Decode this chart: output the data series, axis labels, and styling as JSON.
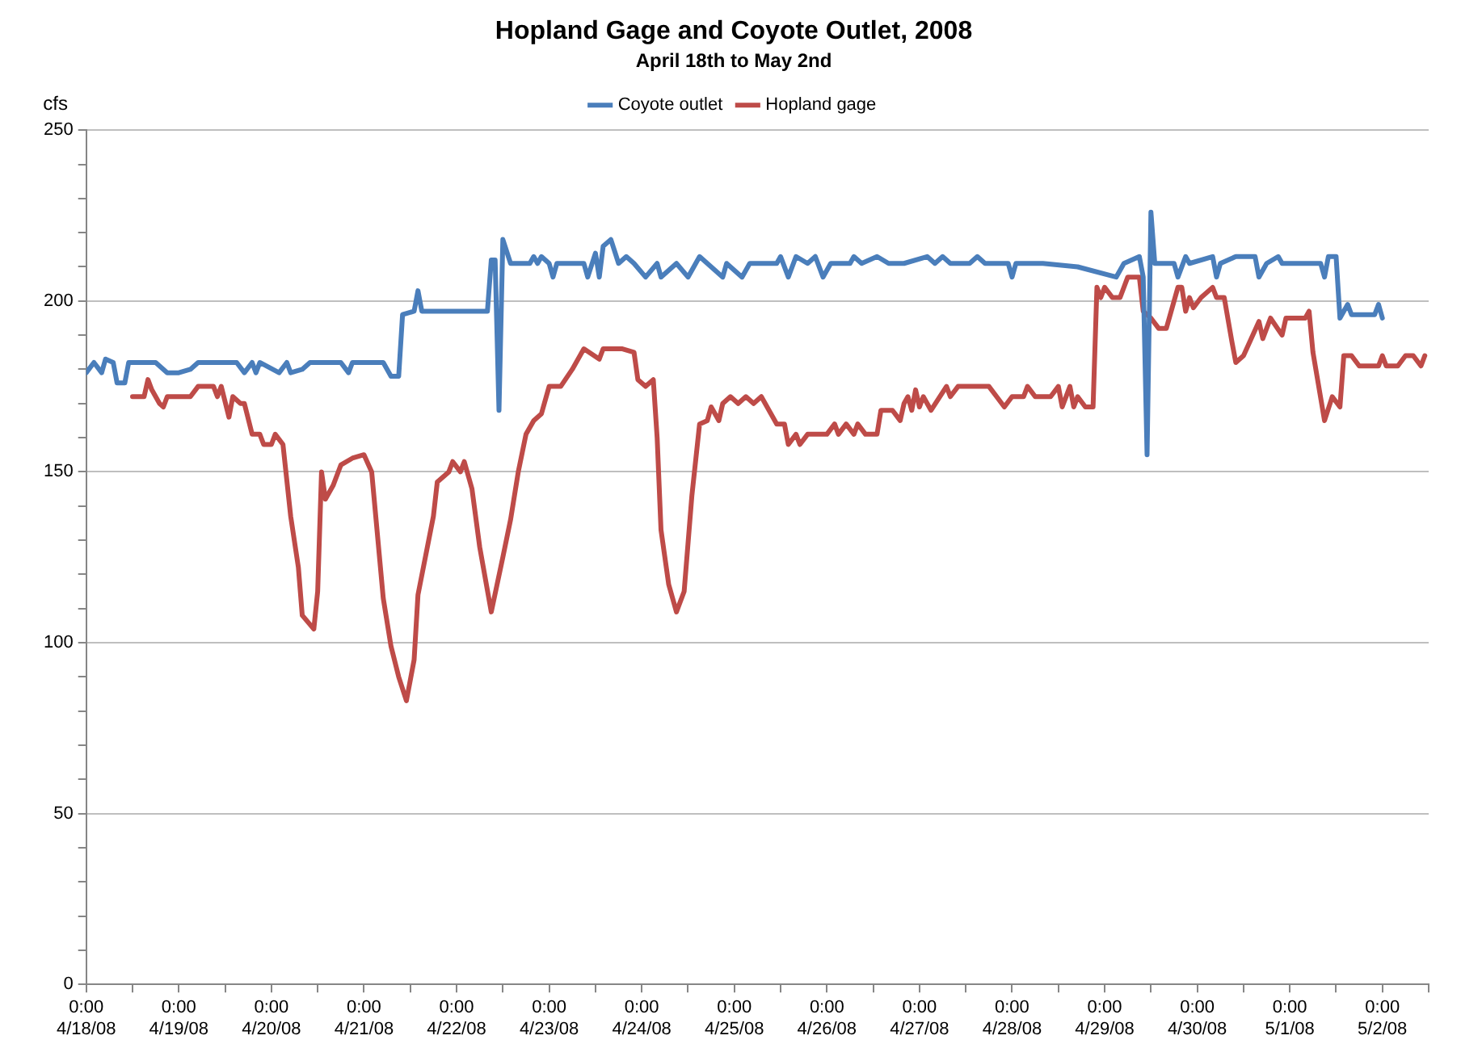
{
  "chart_data": {
    "type": "line",
    "title": "Hopland Gage and Coyote Outlet, 2008",
    "subtitle": "April 18th to May 2nd",
    "ylabel": "cfs",
    "xlim": [
      "2008-04-18T00:00",
      "2008-05-02T12:00"
    ],
    "xticks": [
      {
        "value": "2008-04-18T00:00",
        "label": "0:00 4/18/08"
      },
      {
        "value": "2008-04-18T12:00",
        "label": null
      },
      {
        "value": "2008-04-19T00:00",
        "label": "0:00 4/19/08"
      },
      {
        "value": "2008-04-19T12:00",
        "label": null
      },
      {
        "value": "2008-04-20T00:00",
        "label": "0:00 4/20/08"
      },
      {
        "value": "2008-04-20T12:00",
        "label": null
      },
      {
        "value": "2008-04-21T00:00",
        "label": "0:00 4/21/08"
      },
      {
        "value": "2008-04-21T12:00",
        "label": null
      },
      {
        "value": "2008-04-22T00:00",
        "label": "0:00 4/22/08"
      },
      {
        "value": "2008-04-22T12:00",
        "label": null
      },
      {
        "value": "2008-04-23T00:00",
        "label": "0:00 4/23/08"
      },
      {
        "value": "2008-04-23T12:00",
        "label": null
      },
      {
        "value": "2008-04-24T00:00",
        "label": "0:00 4/24/08"
      },
      {
        "value": "2008-04-24T12:00",
        "label": null
      },
      {
        "value": "2008-04-25T00:00",
        "label": "0:00 4/25/08"
      },
      {
        "value": "2008-04-25T12:00",
        "label": null
      },
      {
        "value": "2008-04-26T00:00",
        "label": "0:00 4/26/08"
      },
      {
        "value": "2008-04-26T12:00",
        "label": null
      },
      {
        "value": "2008-04-27T00:00",
        "label": "0:00 4/27/08"
      },
      {
        "value": "2008-04-27T12:00",
        "label": null
      },
      {
        "value": "2008-04-28T00:00",
        "label": "0:00 4/28/08"
      },
      {
        "value": "2008-04-28T12:00",
        "label": null
      },
      {
        "value": "2008-04-29T00:00",
        "label": "0:00 4/29/08"
      },
      {
        "value": "2008-04-29T12:00",
        "label": null
      },
      {
        "value": "2008-04-30T00:00",
        "label": "0:00 4/30/08"
      },
      {
        "value": "2008-04-30T12:00",
        "label": null
      },
      {
        "value": "2008-05-01T00:00",
        "label": "0:00 5/1/08"
      },
      {
        "value": "2008-05-01T12:00",
        "label": null
      },
      {
        "value": "2008-05-02T00:00",
        "label": "0:00 5/2/08"
      },
      {
        "value": "2008-05-02T12:00",
        "label": null
      }
    ],
    "ylim": [
      0,
      250
    ],
    "yticks": [
      0,
      {
        "value": 10,
        "label": null
      },
      {
        "value": 20,
        "label": null
      },
      {
        "value": 30,
        "label": null
      },
      {
        "value": 40,
        "label": null
      },
      50,
      {
        "value": 60,
        "label": null
      },
      {
        "value": 70,
        "label": null
      },
      {
        "value": 80,
        "label": null
      },
      {
        "value": 90,
        "label": null
      },
      100,
      {
        "value": 110,
        "label": null
      },
      {
        "value": 120,
        "label": null
      },
      {
        "value": 130,
        "label": null
      },
      {
        "value": 140,
        "label": null
      },
      150,
      {
        "value": 160,
        "label": null
      },
      {
        "value": 170,
        "label": null
      },
      {
        "value": 180,
        "label": null
      },
      {
        "value": 190,
        "label": null
      },
      200,
      {
        "value": 210,
        "label": null
      },
      {
        "value": 220,
        "label": null
      },
      {
        "value": 230,
        "label": null
      },
      {
        "value": 240,
        "label": null
      },
      250
    ],
    "grid": "y",
    "legend": "top",
    "marker": "none",
    "line_style": "solid",
    "series": [
      {
        "name": "Coyote outlet",
        "color": "#4a7ebb",
        "x": [
          "2008-04-18T00:00",
          "2008-04-18T02:00",
          "2008-04-18T04:00",
          "2008-04-18T05:00",
          "2008-04-18T07:00",
          "2008-04-18T08:00",
          "2008-04-18T10:00",
          "2008-04-18T11:00",
          "2008-04-18T18:00",
          "2008-04-18T21:00",
          "2008-04-19T00:00",
          "2008-04-19T03:00",
          "2008-04-19T05:00",
          "2008-04-19T15:00",
          "2008-04-19T17:00",
          "2008-04-19T19:00",
          "2008-04-19T20:00",
          "2008-04-19T21:00",
          "2008-04-20T02:00",
          "2008-04-20T04:00",
          "2008-04-20T05:00",
          "2008-04-20T08:00",
          "2008-04-20T10:00",
          "2008-04-20T18:00",
          "2008-04-20T20:00",
          "2008-04-20T21:00",
          "2008-04-21T05:00",
          "2008-04-21T07:00",
          "2008-04-21T09:00",
          "2008-04-21T10:00",
          "2008-04-21T13:00",
          "2008-04-21T14:00",
          "2008-04-21T15:00",
          "2008-04-22T08:00",
          "2008-04-22T09:00",
          "2008-04-22T10:00",
          "2008-04-22T11:00",
          "2008-04-22T12:00",
          "2008-04-22T14:00",
          "2008-04-22T19:00",
          "2008-04-22T20:00",
          "2008-04-22T21:00",
          "2008-04-22T22:00",
          "2008-04-23T00:00",
          "2008-04-23T01:00",
          "2008-04-23T02:00",
          "2008-04-23T09:00",
          "2008-04-23T10:00",
          "2008-04-23T12:00",
          "2008-04-23T13:00",
          "2008-04-23T14:00",
          "2008-04-23T16:00",
          "2008-04-23T18:00",
          "2008-04-23T20:00",
          "2008-04-23T22:00",
          "2008-04-24T01:00",
          "2008-04-24T04:00",
          "2008-04-24T05:00",
          "2008-04-24T09:00",
          "2008-04-24T12:00",
          "2008-04-24T14:00",
          "2008-04-24T15:00",
          "2008-04-24T17:00",
          "2008-04-24T21:00",
          "2008-04-24T22:00",
          "2008-04-25T02:00",
          "2008-04-25T04:00",
          "2008-04-25T11:00",
          "2008-04-25T12:00",
          "2008-04-25T14:00",
          "2008-04-25T16:00",
          "2008-04-25T19:00",
          "2008-04-25T21:00",
          "2008-04-25T23:00",
          "2008-04-26T01:00",
          "2008-04-26T06:00",
          "2008-04-26T07:00",
          "2008-04-26T09:00",
          "2008-04-26T13:00",
          "2008-04-26T16:00",
          "2008-04-26T20:00",
          "2008-04-27T02:00",
          "2008-04-27T04:00",
          "2008-04-27T06:00",
          "2008-04-27T08:00",
          "2008-04-27T13:00",
          "2008-04-27T15:00",
          "2008-04-27T17:00",
          "2008-04-27T23:00",
          "2008-04-28T00:00",
          "2008-04-28T01:00",
          "2008-04-28T08:00",
          "2008-04-28T17:00",
          "2008-04-29T03:00",
          "2008-04-29T05:00",
          "2008-04-29T09:00",
          "2008-04-29T10:00",
          "2008-04-29T11:00",
          "2008-04-29T12:00",
          "2008-04-29T13:00",
          "2008-04-29T18:00",
          "2008-04-29T19:00",
          "2008-04-29T21:00",
          "2008-04-29T22:00",
          "2008-04-30T04:00",
          "2008-04-30T05:00",
          "2008-04-30T06:00",
          "2008-04-30T10:00",
          "2008-04-30T15:00",
          "2008-04-30T16:00",
          "2008-04-30T18:00",
          "2008-04-30T21:00",
          "2008-04-30T22:00",
          "2008-05-01T08:00",
          "2008-05-01T09:00",
          "2008-05-01T10:00",
          "2008-05-01T12:00",
          "2008-05-01T13:00",
          "2008-05-01T15:00",
          "2008-05-01T16:00",
          "2008-05-01T22:00",
          "2008-05-01T23:00",
          "2008-05-02T00:00"
        ],
        "values": [
          179,
          182,
          179,
          183,
          182,
          176,
          176,
          182,
          182,
          179,
          179,
          180,
          182,
          182,
          179,
          182,
          179,
          182,
          179,
          182,
          179,
          180,
          182,
          182,
          179,
          182,
          182,
          178,
          178,
          196,
          197,
          203,
          197,
          197,
          212,
          212,
          168,
          218,
          211,
          211,
          213,
          211,
          213,
          211,
          207,
          211,
          211,
          207,
          214,
          207,
          216,
          218,
          211,
          213,
          211,
          207,
          211,
          207,
          211,
          207,
          211,
          213,
          211,
          207,
          211,
          207,
          211,
          211,
          213,
          207,
          213,
          211,
          213,
          207,
          211,
          211,
          213,
          211,
          213,
          211,
          211,
          213,
          211,
          213,
          211,
          211,
          213,
          211,
          211,
          207,
          211,
          211,
          210,
          207,
          211,
          213,
          207,
          155,
          226,
          211,
          211,
          207,
          213,
          211,
          213,
          207,
          211,
          213,
          213,
          207,
          211,
          213,
          211,
          211,
          207,
          213,
          213,
          195,
          199,
          196,
          196,
          199,
          195
        ]
      },
      {
        "name": "Hopland gage",
        "color": "#be4b48",
        "x": [
          "2008-04-18T12:00",
          "2008-04-18T15:00",
          "2008-04-18T16:00",
          "2008-04-18T17:00",
          "2008-04-18T19:00",
          "2008-04-18T20:00",
          "2008-04-18T21:00",
          "2008-04-19T03:00",
          "2008-04-19T05:00",
          "2008-04-19T09:00",
          "2008-04-19T10:00",
          "2008-04-19T11:00",
          "2008-04-19T13:00",
          "2008-04-19T14:00",
          "2008-04-19T16:00",
          "2008-04-19T17:00",
          "2008-04-19T19:00",
          "2008-04-19T21:00",
          "2008-04-19T22:00",
          "2008-04-20T00:00",
          "2008-04-20T01:00",
          "2008-04-20T03:00",
          "2008-04-20T05:00",
          "2008-04-20T07:00",
          "2008-04-20T08:00",
          "2008-04-20T11:00",
          "2008-04-20T12:00",
          "2008-04-20T13:00",
          "2008-04-20T14:00",
          "2008-04-20T16:00",
          "2008-04-20T18:00",
          "2008-04-20T21:00",
          "2008-04-21T00:00",
          "2008-04-21T02:00",
          "2008-04-21T05:00",
          "2008-04-21T07:00",
          "2008-04-21T09:00",
          "2008-04-21T11:00",
          "2008-04-21T13:00",
          "2008-04-21T14:00",
          "2008-04-21T18:00",
          "2008-04-21T19:00",
          "2008-04-21T22:00",
          "2008-04-21T23:00",
          "2008-04-22T01:00",
          "2008-04-22T02:00",
          "2008-04-22T04:00",
          "2008-04-22T06:00",
          "2008-04-22T09:00",
          "2008-04-22T12:00",
          "2008-04-22T14:00",
          "2008-04-22T16:00",
          "2008-04-22T18:00",
          "2008-04-22T20:00",
          "2008-04-22T22:00",
          "2008-04-23T00:00",
          "2008-04-23T03:00",
          "2008-04-23T06:00",
          "2008-04-23T09:00",
          "2008-04-23T13:00",
          "2008-04-23T14:00",
          "2008-04-23T19:00",
          "2008-04-23T22:00",
          "2008-04-23T23:00",
          "2008-04-24T01:00",
          "2008-04-24T03:00",
          "2008-04-24T04:00",
          "2008-04-24T05:00",
          "2008-04-24T07:00",
          "2008-04-24T09:00",
          "2008-04-24T11:00",
          "2008-04-24T13:00",
          "2008-04-24T15:00",
          "2008-04-24T17:00",
          "2008-04-24T18:00",
          "2008-04-24T20:00",
          "2008-04-24T21:00",
          "2008-04-24T23:00",
          "2008-04-25T01:00",
          "2008-04-25T03:00",
          "2008-04-25T05:00",
          "2008-04-25T07:00",
          "2008-04-25T09:00",
          "2008-04-25T11:00",
          "2008-04-25T13:00",
          "2008-04-25T14:00",
          "2008-04-25T16:00",
          "2008-04-25T17:00",
          "2008-04-25T19:00",
          "2008-04-26T00:00",
          "2008-04-26T02:00",
          "2008-04-26T03:00",
          "2008-04-26T05:00",
          "2008-04-26T07:00",
          "2008-04-26T08:00",
          "2008-04-26T10:00",
          "2008-04-26T13:00",
          "2008-04-26T14:00",
          "2008-04-26T17:00",
          "2008-04-26T19:00",
          "2008-04-26T20:00",
          "2008-04-26T21:00",
          "2008-04-26T22:00",
          "2008-04-26T23:00",
          "2008-04-27T00:00",
          "2008-04-27T01:00",
          "2008-04-27T03:00",
          "2008-04-27T07:00",
          "2008-04-27T08:00",
          "2008-04-27T10:00",
          "2008-04-27T18:00",
          "2008-04-27T20:00",
          "2008-04-27T22:00",
          "2008-04-28T00:00",
          "2008-04-28T03:00",
          "2008-04-28T04:00",
          "2008-04-28T06:00",
          "2008-04-28T10:00",
          "2008-04-28T12:00",
          "2008-04-28T13:00",
          "2008-04-28T15:00",
          "2008-04-28T16:00",
          "2008-04-28T17:00",
          "2008-04-28T19:00",
          "2008-04-28T21:00",
          "2008-04-28T22:00",
          "2008-04-28T23:00",
          "2008-04-29T00:00",
          "2008-04-29T02:00",
          "2008-04-29T04:00",
          "2008-04-29T06:00",
          "2008-04-29T09:00",
          "2008-04-29T10:00",
          "2008-04-29T12:00",
          "2008-04-29T14:00",
          "2008-04-29T16:00",
          "2008-04-29T19:00",
          "2008-04-29T20:00",
          "2008-04-29T21:00",
          "2008-04-29T22:00",
          "2008-04-29T23:00",
          "2008-04-30T01:00",
          "2008-04-30T04:00",
          "2008-04-30T05:00",
          "2008-04-30T07:00",
          "2008-04-30T09:00",
          "2008-04-30T10:00",
          "2008-04-30T12:00",
          "2008-04-30T16:00",
          "2008-04-30T17:00",
          "2008-04-30T19:00",
          "2008-04-30T22:00",
          "2008-04-30T23:00",
          "2008-05-01T04:00",
          "2008-05-01T05:00",
          "2008-05-01T06:00",
          "2008-05-01T09:00",
          "2008-05-01T11:00",
          "2008-05-01T13:00",
          "2008-05-01T14:00",
          "2008-05-01T16:00",
          "2008-05-01T18:00",
          "2008-05-01T23:00",
          "2008-05-02T00:00",
          "2008-05-02T01:00",
          "2008-05-02T04:00",
          "2008-05-02T06:00",
          "2008-05-02T08:00",
          "2008-05-02T10:00",
          "2008-05-02T11:00"
        ],
        "values": [
          172,
          172,
          177,
          174,
          170,
          169,
          172,
          172,
          175,
          175,
          172,
          175,
          166,
          172,
          170,
          170,
          161,
          161,
          158,
          158,
          161,
          158,
          137,
          122,
          108,
          104,
          115,
          150,
          142,
          146,
          152,
          154,
          155,
          150,
          113,
          99,
          90,
          83,
          95,
          114,
          137,
          147,
          150,
          153,
          150,
          153,
          145,
          128,
          109,
          125,
          136,
          150,
          161,
          165,
          167,
          175,
          175,
          180,
          186,
          183,
          186,
          186,
          185,
          177,
          175,
          177,
          160,
          133,
          117,
          109,
          115,
          143,
          164,
          165,
          169,
          165,
          170,
          172,
          170,
          172,
          170,
          172,
          168,
          164,
          164,
          158,
          161,
          158,
          161,
          161,
          164,
          161,
          164,
          161,
          164,
          161,
          161,
          168,
          168,
          165,
          170,
          172,
          168,
          174,
          169,
          172,
          168,
          175,
          172,
          175,
          175,
          172,
          169,
          172,
          172,
          175,
          172,
          172,
          175,
          169,
          175,
          169,
          172,
          169,
          169,
          204,
          201,
          204,
          201,
          201,
          207,
          207,
          197,
          195,
          192,
          192,
          204,
          204,
          197,
          201,
          198,
          201,
          204,
          201,
          201,
          188,
          182,
          184,
          194,
          189,
          195,
          190,
          195,
          195,
          197,
          185,
          165,
          172,
          169,
          184,
          184,
          181,
          181,
          184,
          181,
          181,
          184,
          184,
          181,
          184
        ]
      }
    ]
  }
}
